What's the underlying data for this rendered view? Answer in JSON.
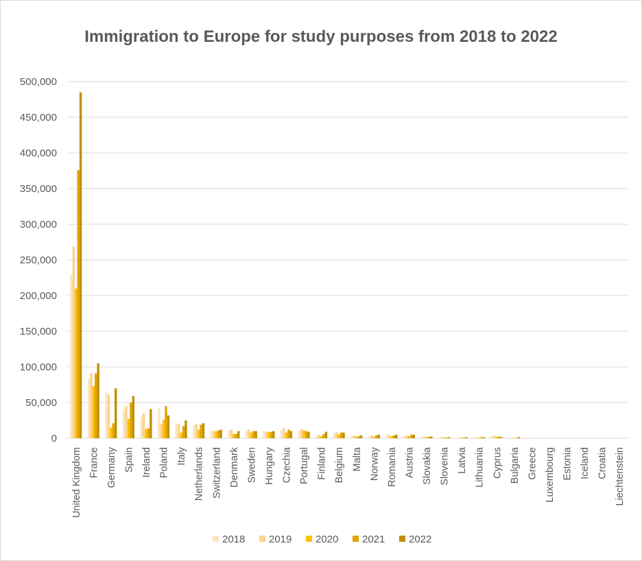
{
  "chart_data": {
    "type": "bar",
    "title": "Immigration to Europe for study purposes from 2018 to 2022",
    "xlabel": "",
    "ylabel": "",
    "ylim": [
      0,
      500000
    ],
    "yticks": [
      0,
      50000,
      100000,
      150000,
      200000,
      250000,
      300000,
      350000,
      400000,
      450000,
      500000
    ],
    "grid": true,
    "legend_position": "bottom",
    "categories": [
      "United Kingdom",
      "France",
      "Germany",
      "Spain",
      "Ireland",
      "Poland",
      "Italy",
      "Netherlands",
      "Switzerland",
      "Denmark",
      "Sweden",
      "Hungary",
      "Czechia",
      "Portugal",
      "Finland",
      "Belgium",
      "Malta",
      "Norway",
      "Romania",
      "Austria",
      "Slovakia",
      "Slovenia",
      "Latvia",
      "Lithuania",
      "Cyprus",
      "Bulgaria",
      "Greece",
      "Luxembourg",
      "Estonia",
      "Iceland",
      "Croatia",
      "Liechtenstein"
    ],
    "series": [
      {
        "name": "2018",
        "color": "#fbe5c0",
        "values": [
          229000,
          83000,
          65000,
          41000,
          30000,
          42000,
          21000,
          18000,
          11000,
          11000,
          11000,
          10000,
          12000,
          10000,
          4000,
          7000,
          3000,
          3000,
          4000,
          3000,
          2000,
          1500,
          1000,
          1500,
          3000,
          800,
          0,
          0,
          0,
          0,
          0,
          0
        ]
      },
      {
        "name": "2019",
        "color": "#fcd38a",
        "values": [
          269000,
          91000,
          61000,
          45000,
          35000,
          20000,
          20000,
          20000,
          10000,
          12000,
          12000,
          9000,
          14000,
          13000,
          5000,
          8000,
          4000,
          4000,
          5000,
          4000,
          2500,
          1800,
          1200,
          1500,
          3500,
          900,
          0,
          0,
          0,
          0,
          0,
          0
        ]
      },
      {
        "name": "2020",
        "color": "#ffc000",
        "values": [
          210000,
          73000,
          15000,
          27000,
          13000,
          26000,
          8000,
          12000,
          10000,
          6000,
          8000,
          9000,
          8000,
          11000,
          3000,
          5000,
          2000,
          2000,
          3000,
          3000,
          1500,
          1000,
          800,
          800,
          2000,
          500,
          0,
          0,
          0,
          0,
          0,
          0
        ]
      },
      {
        "name": "2021",
        "color": "#e0a400",
        "values": [
          376000,
          91000,
          21000,
          50000,
          14000,
          45000,
          17000,
          19000,
          11000,
          6000,
          10000,
          9000,
          12000,
          10000,
          6000,
          8000,
          3000,
          4000,
          4000,
          5000,
          2000,
          1000,
          1000,
          1500,
          2500,
          700,
          0,
          0,
          0,
          0,
          0,
          0
        ]
      },
      {
        "name": "2022",
        "color": "#bf9000",
        "values": [
          485000,
          105000,
          70000,
          59000,
          41000,
          32000,
          25000,
          21000,
          12000,
          10000,
          10000,
          10000,
          10000,
          9000,
          9000,
          8000,
          4000,
          5000,
          5000,
          5000,
          2500,
          1500,
          1500,
          1500,
          1500,
          1500,
          0,
          0,
          0,
          0,
          0,
          0
        ]
      }
    ]
  }
}
